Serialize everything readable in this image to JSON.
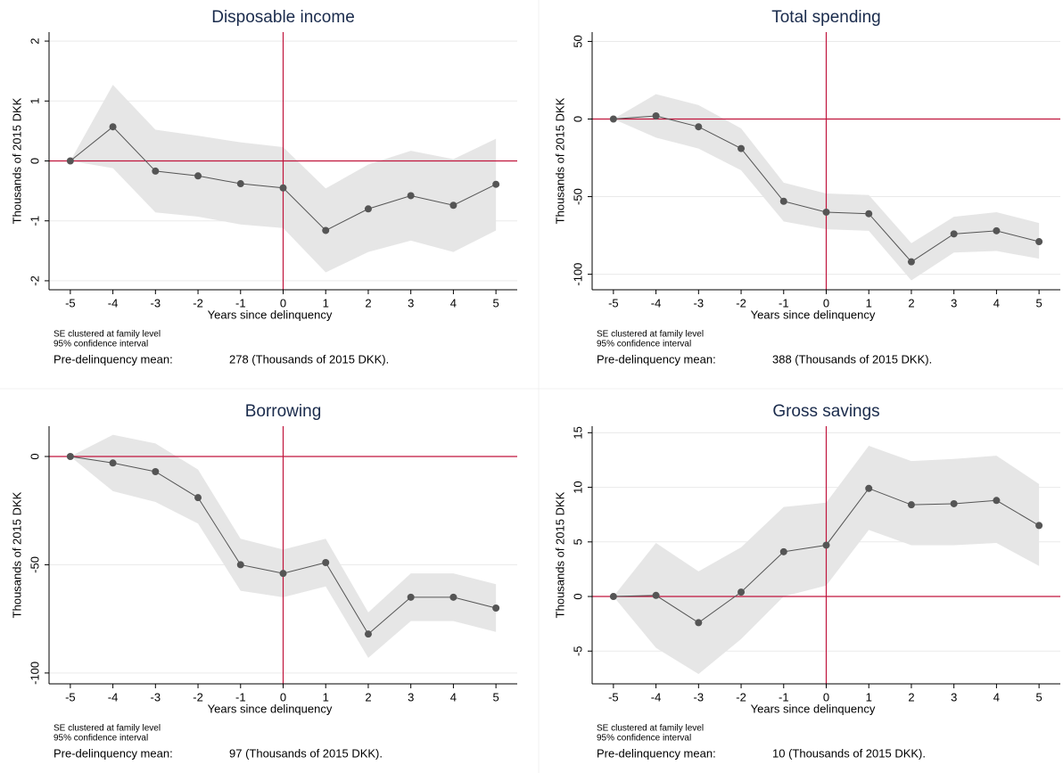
{
  "chart_data": [
    {
      "type": "line",
      "title": "Disposable income",
      "xlabel": "Years since delinquency",
      "ylabel": "Thousands of 2015 DKK",
      "x": [
        -5,
        -4,
        -3,
        -2,
        -1,
        0,
        1,
        2,
        3,
        4,
        5
      ],
      "xlim": [
        -5.5,
        5.5
      ],
      "xticks": [
        -5,
        -4,
        -3,
        -2,
        -1,
        0,
        1,
        2,
        3,
        4,
        5
      ],
      "ylim": [
        -2.15,
        2.15
      ],
      "yticks": [
        -2,
        -1,
        0,
        1,
        2
      ],
      "grid": true,
      "series": [
        {
          "color": "#555555",
          "values": [
            0,
            0.57,
            -0.17,
            -0.25,
            -0.38,
            -0.45,
            -1.16,
            -0.8,
            -0.58,
            -0.74,
            -0.39
          ]
        }
      ],
      "ci_upper": [
        0,
        1.27,
        0.52,
        0.42,
        0.31,
        0.23,
        -0.46,
        -0.06,
        0.17,
        0.03,
        0.37
      ],
      "ci_lower": [
        0,
        -0.12,
        -0.86,
        -0.93,
        -1.06,
        -1.12,
        -1.86,
        -1.52,
        -1.33,
        -1.52,
        -1.16
      ],
      "ci_color": "#e6e6e6",
      "ref_color": "#c0143c",
      "vline": 0,
      "hline": 0,
      "notes": [
        "SE clustered at family level",
        "95% confidence interval"
      ],
      "mean_label": "Pre-delinquency mean:",
      "mean_value": "278 (Thousands of 2015 DKK)."
    },
    {
      "type": "line",
      "title": "Total spending",
      "xlabel": "Years since delinquency",
      "ylabel": "Thousands of 2015 DKK",
      "x": [
        -5,
        -4,
        -3,
        -2,
        -1,
        0,
        1,
        2,
        3,
        4,
        5
      ],
      "xlim": [
        -5.5,
        5.5
      ],
      "xticks": [
        -5,
        -4,
        -3,
        -2,
        -1,
        0,
        1,
        2,
        3,
        4,
        5
      ],
      "ylim": [
        -110,
        56
      ],
      "yticks": [
        -100,
        -50,
        0,
        50
      ],
      "grid": true,
      "series": [
        {
          "color": "#555555",
          "values": [
            0,
            2,
            -5,
            -19,
            -53,
            -60,
            -61,
            -92,
            -74,
            -72,
            -79
          ]
        }
      ],
      "ci_upper": [
        0,
        16,
        9,
        -6,
        -41,
        -48,
        -49,
        -80,
        -63,
        -60,
        -67
      ],
      "ci_lower": [
        0,
        -12,
        -19,
        -33,
        -66,
        -71,
        -72,
        -104,
        -86,
        -85,
        -90
      ],
      "ci_color": "#e6e6e6",
      "ref_color": "#c0143c",
      "vline": 0,
      "hline": 0,
      "notes": [
        "SE clustered at family level",
        "95% confidence interval"
      ],
      "mean_label": "Pre-delinquency mean:",
      "mean_value": "388 (Thousands of 2015 DKK)."
    },
    {
      "type": "line",
      "title": "Borrowing",
      "xlabel": "Years since delinquency",
      "ylabel": "Thousands of 2015 DKK",
      "x": [
        -5,
        -4,
        -3,
        -2,
        -1,
        0,
        1,
        2,
        3,
        4,
        5
      ],
      "xlim": [
        -5.5,
        5.5
      ],
      "xticks": [
        -5,
        -4,
        -3,
        -2,
        -1,
        0,
        1,
        2,
        3,
        4,
        5
      ],
      "ylim": [
        -105,
        14
      ],
      "yticks": [
        -100,
        -50,
        0
      ],
      "grid": true,
      "series": [
        {
          "color": "#555555",
          "values": [
            0,
            -3,
            -7,
            -19,
            -50,
            -54,
            -49,
            -82,
            -65,
            -65,
            -70
          ]
        }
      ],
      "ci_upper": [
        0,
        10,
        6,
        -6,
        -38,
        -43,
        -38,
        -72,
        -54,
        -54,
        -59
      ],
      "ci_lower": [
        0,
        -16,
        -21,
        -31,
        -62,
        -65,
        -60,
        -93,
        -76,
        -76,
        -81
      ],
      "ci_color": "#e6e6e6",
      "ref_color": "#c0143c",
      "vline": 0,
      "hline": 0,
      "notes": [
        "SE clustered at family level",
        "95% confidence interval"
      ],
      "mean_label": "Pre-delinquency mean:",
      "mean_value": "97 (Thousands of 2015 DKK)."
    },
    {
      "type": "line",
      "title": "Gross savings",
      "xlabel": "Years since delinquency",
      "ylabel": "Thousands of 2015 DKK",
      "x": [
        -5,
        -4,
        -3,
        -2,
        -1,
        0,
        1,
        2,
        3,
        4,
        5
      ],
      "xlim": [
        -5.5,
        5.5
      ],
      "xticks": [
        -5,
        -4,
        -3,
        -2,
        -1,
        0,
        1,
        2,
        3,
        4,
        5
      ],
      "ylim": [
        -8,
        15.6
      ],
      "yticks": [
        -5,
        0,
        5,
        10,
        15
      ],
      "grid": true,
      "series": [
        {
          "color": "#555555",
          "values": [
            0,
            0.1,
            -2.4,
            0.4,
            4.1,
            4.7,
            9.9,
            8.4,
            8.5,
            8.8,
            6.5
          ]
        }
      ],
      "ci_upper": [
        0,
        4.9,
        2.3,
        4.5,
        8.2,
        8.6,
        13.8,
        12.4,
        12.6,
        12.9,
        10.3
      ],
      "ci_lower": [
        0,
        -4.7,
        -7.1,
        -3.9,
        0,
        1,
        6.1,
        4.7,
        4.7,
        4.9,
        2.8
      ],
      "ci_color": "#e6e6e6",
      "ref_color": "#c0143c",
      "vline": 0,
      "hline": 0,
      "notes": [
        "SE clustered at family level",
        "95% confidence interval"
      ],
      "mean_label": "Pre-delinquency mean:",
      "mean_value": "10 (Thousands of 2015 DKK)."
    }
  ]
}
